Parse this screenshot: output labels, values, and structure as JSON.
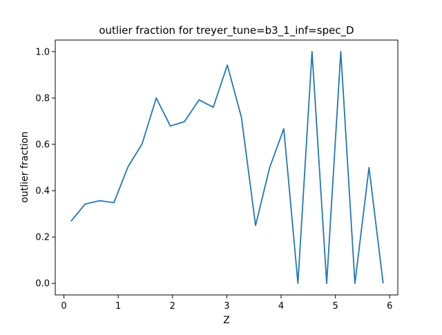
{
  "chart_data": {
    "type": "line",
    "title": "outlier fraction for treyer_tune=b3_1_inf=spec_D",
    "xlabel": "Z",
    "ylabel": "outlier fraction",
    "xlim": [
      -0.16,
      6.15
    ],
    "ylim": [
      -0.05,
      1.05
    ],
    "xticks": [
      0,
      1,
      2,
      3,
      4,
      5,
      6
    ],
    "yticks": [
      0.0,
      0.2,
      0.4,
      0.6,
      0.8,
      1.0
    ],
    "xtick_labels": [
      "0",
      "1",
      "2",
      "3",
      "4",
      "5",
      "6"
    ],
    "ytick_labels": [
      "0.0",
      "0.2",
      "0.4",
      "0.6",
      "0.8",
      "1.0"
    ],
    "grid": false,
    "series": [
      {
        "color": "#1f77b4",
        "x": [
          0.13,
          0.39,
          0.66,
          0.92,
          1.18,
          1.44,
          1.7,
          1.96,
          2.22,
          2.49,
          2.75,
          3.01,
          3.27,
          3.53,
          3.79,
          4.05,
          4.31,
          4.57,
          4.84,
          5.1,
          5.36,
          5.62,
          5.88
        ],
        "y": [
          0.268,
          0.342,
          0.357,
          0.348,
          0.503,
          0.602,
          0.8,
          0.679,
          0.698,
          0.792,
          0.76,
          0.942,
          0.716,
          0.25,
          0.5,
          0.667,
          0.0,
          1.0,
          0.0,
          1.0,
          0.0,
          0.5,
          0.0
        ]
      }
    ]
  }
}
